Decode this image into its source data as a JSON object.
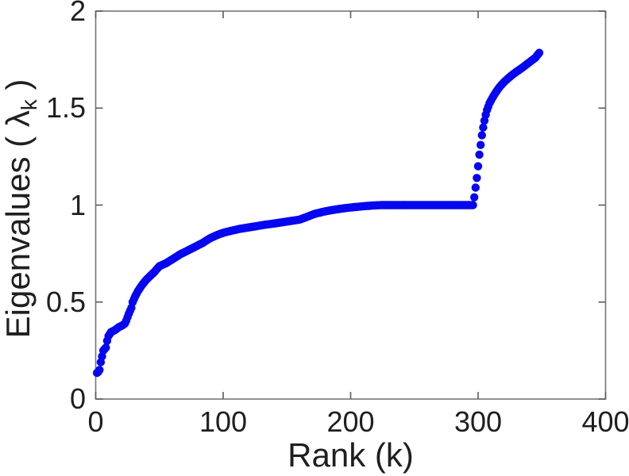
{
  "figure": {
    "background": "#ffffff"
  },
  "chart_data": {
    "type": "scatter",
    "title": "",
    "xlabel": "Rank (k)",
    "ylabel_parts": {
      "prefix": "Eigenvalues ( ",
      "symbol": "λ",
      "subscript": "k",
      "suffix": " )"
    },
    "series_name": "sorted-eigenvalue-spectrum",
    "xlim": [
      0,
      400
    ],
    "ylim": [
      0,
      2
    ],
    "x_ticks": [
      0,
      100,
      200,
      300,
      400
    ],
    "x_tick_labels": [
      "0",
      "100",
      "200",
      "300",
      "400"
    ],
    "y_ticks": [
      0,
      0.5,
      1,
      1.5,
      2
    ],
    "y_tick_labels": [
      "0",
      "0.5",
      "1",
      "1.5",
      "2"
    ],
    "grid": false,
    "legend": null,
    "box": true,
    "marker": {
      "shape": "dot",
      "color": "#0606f0",
      "radius_px": 5.2
    },
    "axis_color": "#767676",
    "tick_color": "#5c5c5c",
    "text_color": "#1f1f1f",
    "k_range": [
      1,
      348
    ],
    "k_step": 1,
    "interpolation": "linear",
    "anchors": [
      [
        1,
        0.135
      ],
      [
        2,
        0.14
      ],
      [
        3,
        0.15
      ],
      [
        4,
        0.19
      ],
      [
        5,
        0.22
      ],
      [
        6,
        0.25
      ],
      [
        8,
        0.265
      ],
      [
        9,
        0.3
      ],
      [
        10,
        0.325
      ],
      [
        12,
        0.345
      ],
      [
        15,
        0.355
      ],
      [
        18,
        0.37
      ],
      [
        21,
        0.38
      ],
      [
        23,
        0.39
      ],
      [
        24,
        0.405
      ],
      [
        26,
        0.44
      ],
      [
        28,
        0.47
      ],
      [
        29,
        0.5
      ],
      [
        31,
        0.53
      ],
      [
        33,
        0.555
      ],
      [
        36,
        0.585
      ],
      [
        39,
        0.61
      ],
      [
        42,
        0.63
      ],
      [
        46,
        0.655
      ],
      [
        50,
        0.685
      ],
      [
        55,
        0.7
      ],
      [
        60,
        0.72
      ],
      [
        66,
        0.745
      ],
      [
        72,
        0.765
      ],
      [
        78,
        0.785
      ],
      [
        84,
        0.805
      ],
      [
        90,
        0.83
      ],
      [
        95,
        0.845
      ],
      [
        100,
        0.857
      ],
      [
        106,
        0.867
      ],
      [
        112,
        0.876
      ],
      [
        118,
        0.883
      ],
      [
        125,
        0.89
      ],
      [
        132,
        0.898
      ],
      [
        140,
        0.905
      ],
      [
        150,
        0.915
      ],
      [
        160,
        0.925
      ],
      [
        166,
        0.94
      ],
      [
        172,
        0.955
      ],
      [
        178,
        0.965
      ],
      [
        186,
        0.975
      ],
      [
        194,
        0.983
      ],
      [
        202,
        0.989
      ],
      [
        210,
        0.994
      ],
      [
        218,
        0.998
      ],
      [
        224,
        1.0
      ],
      [
        296,
        1.0
      ],
      [
        297,
        1.04
      ],
      [
        298,
        1.09
      ],
      [
        299,
        1.14
      ],
      [
        300,
        1.2
      ],
      [
        301,
        1.26
      ],
      [
        302,
        1.31
      ],
      [
        303,
        1.36
      ],
      [
        304,
        1.4
      ],
      [
        305,
        1.435
      ],
      [
        306,
        1.465
      ],
      [
        307,
        1.49
      ],
      [
        309,
        1.525
      ],
      [
        311,
        1.55
      ],
      [
        313,
        1.572
      ],
      [
        315,
        1.592
      ],
      [
        317,
        1.61
      ],
      [
        320,
        1.632
      ],
      [
        323,
        1.65
      ],
      [
        326,
        1.667
      ],
      [
        330,
        1.687
      ],
      [
        334,
        1.705
      ],
      [
        338,
        1.725
      ],
      [
        342,
        1.745
      ],
      [
        345,
        1.76
      ],
      [
        348,
        1.785
      ]
    ]
  }
}
